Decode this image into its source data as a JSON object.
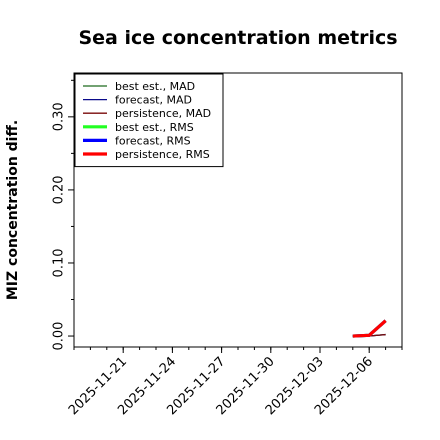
{
  "chart_data": {
    "type": "line",
    "title": "Sea ice concentration metrics",
    "xlabel": "",
    "ylabel": "MIZ concentration diff.",
    "x_ticks": [
      "2025-11-21",
      "2025-11-24",
      "2025-11-27",
      "2025-11-30",
      "2025-12-03",
      "2025-12-06"
    ],
    "highlighted_x_tick": "2025-11-27",
    "highlight_color": "#2e8b2e",
    "x_range": [
      "2025-11-18",
      "2025-12-08"
    ],
    "y_ticks": [
      0.0,
      0.1,
      0.2,
      0.3
    ],
    "y_tick_labels": [
      "0.00",
      "0.10",
      "0.20",
      "0.30"
    ],
    "ylim": [
      -0.015,
      0.36
    ],
    "grid": false,
    "legend_position": "upper-left",
    "series": [
      {
        "name": "best est., MAD",
        "color": "#1f6b1f",
        "linewidth": 1.3,
        "x": [
          "2025-12-05",
          "2025-12-06",
          "2025-12-07"
        ],
        "values": [
          0.0,
          0.0,
          0.002
        ]
      },
      {
        "name": "forecast,  MAD",
        "color": "#0a0a8a",
        "linewidth": 1.3,
        "x": [
          "2025-12-05",
          "2025-12-06",
          "2025-12-07"
        ],
        "values": [
          0.0,
          0.0,
          0.002
        ]
      },
      {
        "name": "persistence, MAD",
        "color": "#7a0a0a",
        "linewidth": 1.3,
        "x": [
          "2025-12-05",
          "2025-12-06",
          "2025-12-07"
        ],
        "values": [
          0.0,
          0.0,
          0.002
        ]
      },
      {
        "name": "best est., RMS",
        "color": "#22ff22",
        "linewidth": 3.2,
        "x": [
          "2025-12-05",
          "2025-12-06",
          "2025-12-07"
        ],
        "values": [
          0.0,
          0.001,
          0.021
        ]
      },
      {
        "name": "forecast,  RMS",
        "color": "#0000ff",
        "linewidth": 3.2,
        "x": [
          "2025-12-05",
          "2025-12-06",
          "2025-12-07"
        ],
        "values": [
          0.0,
          0.001,
          0.021
        ]
      },
      {
        "name": "persistence, RMS",
        "color": "#ff0000",
        "linewidth": 3.2,
        "x": [
          "2025-12-05",
          "2025-12-06",
          "2025-12-07"
        ],
        "values": [
          0.0,
          0.001,
          0.021
        ]
      }
    ]
  }
}
